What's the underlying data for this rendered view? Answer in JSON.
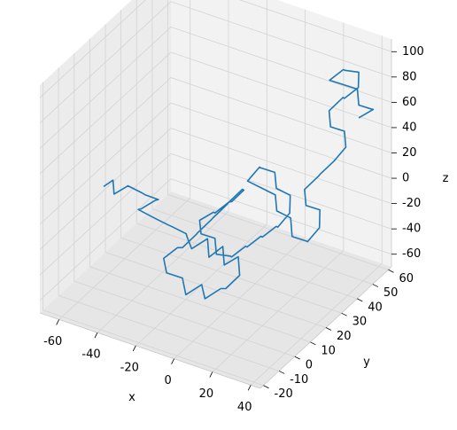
{
  "chart_data": {
    "type": "line3d",
    "title": "",
    "xlabel": "x",
    "ylabel": "y",
    "zlabel": "z",
    "xlim": [
      -70,
      45
    ],
    "ylim": [
      -22,
      62
    ],
    "zlim": [
      -70,
      110
    ],
    "xticks": [
      -60,
      -40,
      -20,
      0,
      20,
      40
    ],
    "yticks": [
      -20,
      -10,
      0,
      10,
      20,
      30,
      40,
      50,
      60
    ],
    "zticks": [
      -60,
      -40,
      -20,
      0,
      20,
      40,
      60,
      80,
      100
    ],
    "grid": true,
    "line_color": "#1f77b4",
    "series": [
      {
        "points": [
          [
            -56,
            2,
            10
          ],
          [
            -53,
            4,
            14
          ],
          [
            -50,
            1,
            8
          ],
          [
            -46,
            5,
            12
          ],
          [
            -42,
            9,
            4
          ],
          [
            -38,
            6,
            8
          ],
          [
            -35,
            11,
            0
          ],
          [
            -39,
            14,
            -6
          ],
          [
            -44,
            11,
            -12
          ],
          [
            -48,
            14,
            -18
          ],
          [
            -45,
            18,
            -26
          ],
          [
            -40,
            15,
            -22
          ],
          [
            -36,
            19,
            -30
          ],
          [
            -31,
            15,
            -24
          ],
          [
            -27,
            19,
            -32
          ],
          [
            -30,
            23,
            -40
          ],
          [
            -25,
            20,
            -44
          ],
          [
            -20,
            24,
            -38
          ],
          [
            -16,
            20,
            -46
          ],
          [
            -12,
            24,
            -40
          ],
          [
            -8,
            20,
            -48
          ],
          [
            -4,
            24,
            -44
          ],
          [
            0,
            20,
            -52
          ],
          [
            -4,
            16,
            -60
          ],
          [
            -9,
            19,
            -66
          ],
          [
            -14,
            15,
            -72
          ],
          [
            -19,
            19,
            -68
          ],
          [
            -24,
            15,
            -74
          ],
          [
            -29,
            19,
            -68
          ],
          [
            -34,
            15,
            -62
          ],
          [
            -38,
            18,
            -56
          ],
          [
            -34,
            22,
            -50
          ],
          [
            -29,
            19,
            -44
          ],
          [
            -25,
            23,
            -36
          ],
          [
            -21,
            19,
            -28
          ],
          [
            -17,
            23,
            -20
          ],
          [
            -13,
            19,
            -12
          ],
          [
            -9,
            23,
            -4
          ],
          [
            -5,
            19,
            4
          ],
          [
            -1,
            23,
            12
          ],
          [
            3,
            19,
            18
          ],
          [
            0,
            15,
            12
          ],
          [
            -4,
            18,
            6
          ],
          [
            -8,
            14,
            0
          ],
          [
            -12,
            18,
            -6
          ],
          [
            -16,
            14,
            -10
          ],
          [
            -12,
            10,
            -14
          ],
          [
            -8,
            14,
            -20
          ],
          [
            -4,
            10,
            -26
          ],
          [
            0,
            14,
            -30
          ],
          [
            4,
            10,
            -24
          ],
          [
            8,
            14,
            -18
          ],
          [
            12,
            10,
            -12
          ],
          [
            16,
            14,
            -6
          ],
          [
            20,
            10,
            0
          ],
          [
            24,
            14,
            6
          ],
          [
            28,
            10,
            12
          ],
          [
            31,
            14,
            20
          ],
          [
            28,
            18,
            28
          ],
          [
            24,
            14,
            36
          ],
          [
            20,
            18,
            42
          ],
          [
            16,
            14,
            48
          ],
          [
            12,
            18,
            42
          ],
          [
            9,
            14,
            34
          ],
          [
            13,
            18,
            26
          ],
          [
            17,
            22,
            18
          ],
          [
            21,
            18,
            12
          ],
          [
            25,
            22,
            4
          ],
          [
            29,
            18,
            -4
          ],
          [
            33,
            22,
            -10
          ],
          [
            37,
            18,
            -4
          ],
          [
            40,
            22,
            4
          ],
          [
            37,
            26,
            12
          ],
          [
            33,
            22,
            18
          ],
          [
            29,
            26,
            24
          ],
          [
            33,
            30,
            32
          ],
          [
            37,
            26,
            40
          ],
          [
            41,
            30,
            48
          ],
          [
            44,
            34,
            56
          ],
          [
            40,
            38,
            62
          ],
          [
            36,
            34,
            68
          ],
          [
            32,
            38,
            74
          ],
          [
            36,
            42,
            82
          ],
          [
            40,
            38,
            88
          ],
          [
            44,
            42,
            94
          ],
          [
            41,
            46,
            100
          ],
          [
            37,
            42,
            104
          ],
          [
            33,
            46,
            98
          ],
          [
            29,
            42,
            92
          ],
          [
            33,
            46,
            86
          ],
          [
            37,
            50,
            80
          ],
          [
            41,
            46,
            74
          ],
          [
            44,
            50,
            68
          ],
          [
            42,
            54,
            62
          ],
          [
            38,
            50,
            58
          ]
        ]
      }
    ]
  }
}
